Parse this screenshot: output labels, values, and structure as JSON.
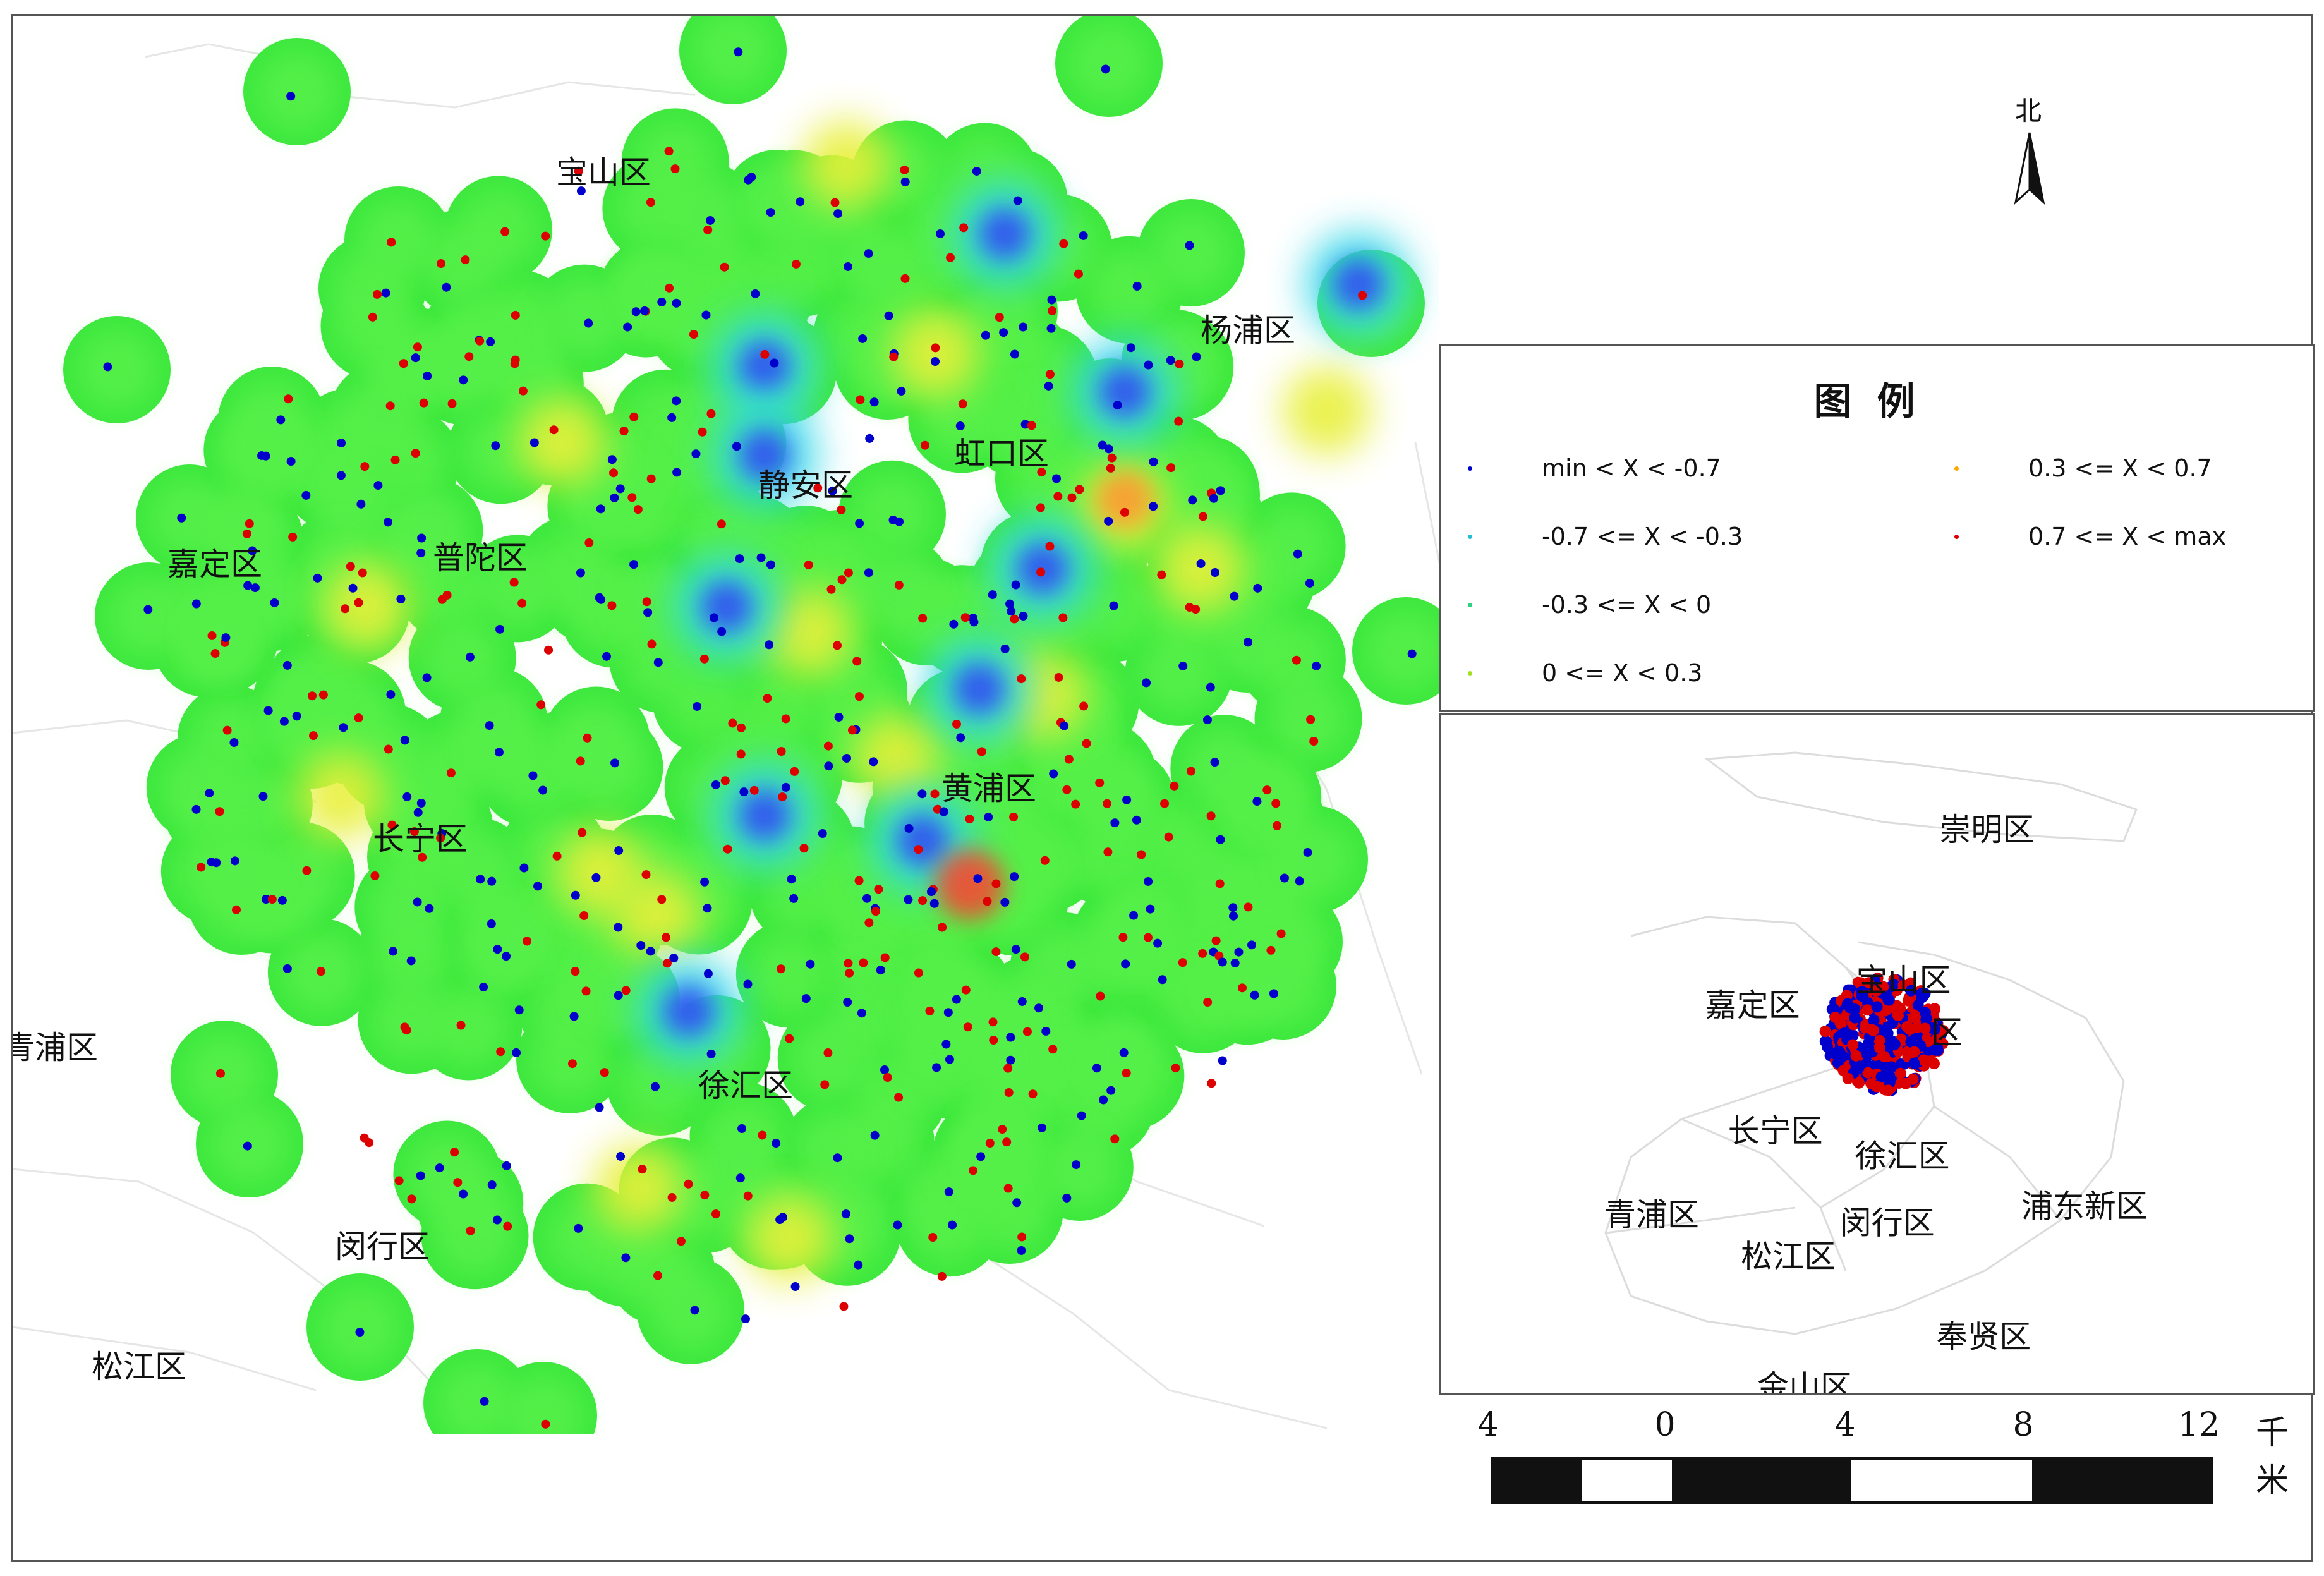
{
  "map": {
    "districts_main": [
      {
        "name": "宝山区"
      },
      {
        "name": "嘉定区"
      },
      {
        "name": "普陀区"
      },
      {
        "name": "静安区"
      },
      {
        "name": "虹口区"
      },
      {
        "name": "杨浦区"
      },
      {
        "name": "长宁区"
      },
      {
        "name": "黄浦区"
      },
      {
        "name": "徐汇区"
      },
      {
        "name": "闵行区"
      },
      {
        "name": "松江区"
      },
      {
        "name": "青浦区"
      }
    ]
  },
  "north_arrow": {
    "label": "北"
  },
  "legend": {
    "title": "图例",
    "items": [
      {
        "label": "min < X < -0.7",
        "color": "#0000cc"
      },
      {
        "label": "-0.7 <= X < -0.3",
        "color": "#20c0d0"
      },
      {
        "label": "-0.3 <= X < 0",
        "color": "#30d080"
      },
      {
        "label": "0 <= X < 0.3",
        "color": "#a0e020"
      },
      {
        "label": "0.3 <= X < 0.7",
        "color": "#ffaa00"
      },
      {
        "label": "0.7 <= X < max",
        "color": "#dd0000"
      }
    ]
  },
  "inset": {
    "districts": [
      {
        "name": "崇明区"
      },
      {
        "name": "宝山区"
      },
      {
        "name": "嘉定区"
      },
      {
        "name": "长宁区"
      },
      {
        "name": "徐汇区"
      },
      {
        "name": "闵行区"
      },
      {
        "name": "青浦区"
      },
      {
        "name": "松江区"
      },
      {
        "name": "浦东新区"
      },
      {
        "name": "奉贤区"
      },
      {
        "name": "金山区"
      },
      {
        "name": "区"
      }
    ]
  },
  "scale": {
    "ticks": [
      "4",
      "0",
      "4",
      "8",
      "12"
    ],
    "unit": "千米"
  }
}
